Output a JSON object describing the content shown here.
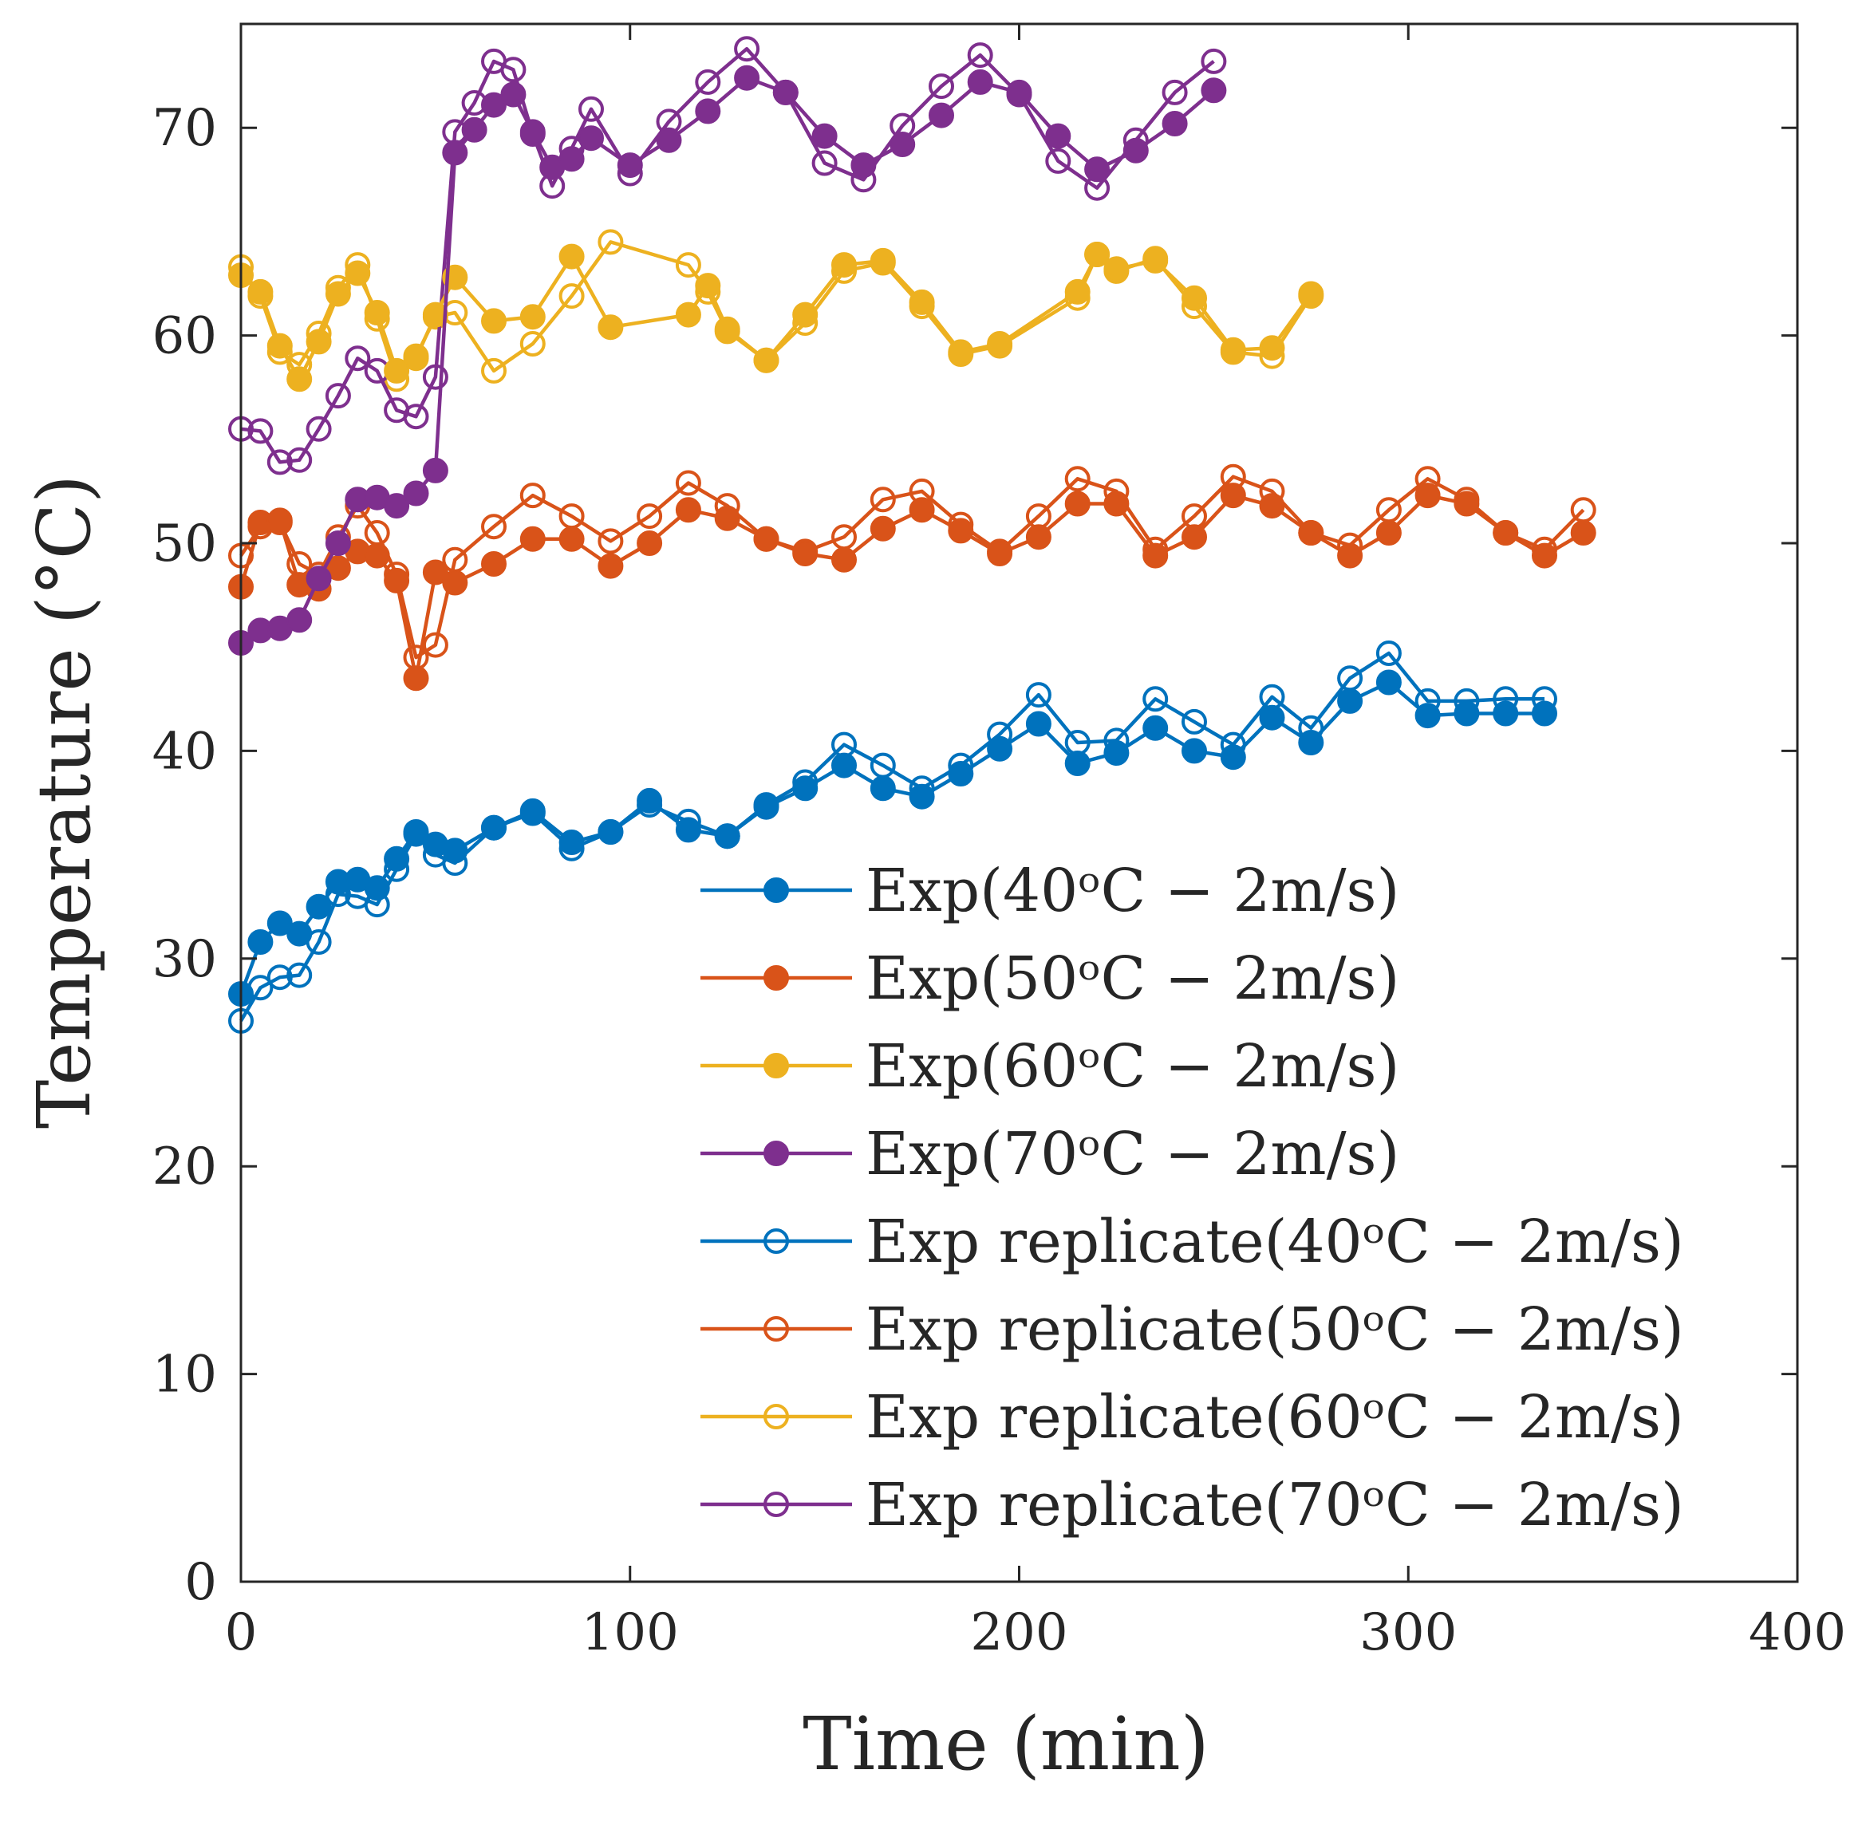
{
  "chart_data": {
    "type": "line",
    "title": "",
    "xlabel": "Time (min)",
    "ylabel": "Temperature (°C)",
    "xlim": [
      0,
      400
    ],
    "ylim": [
      0,
      75
    ],
    "xticks": [
      0,
      100,
      200,
      300,
      400
    ],
    "yticks": [
      0,
      10,
      20,
      30,
      40,
      50,
      60,
      70
    ],
    "xtick_labels": [
      "0",
      "100",
      "200",
      "300",
      "400"
    ],
    "ytick_labels": [
      "0",
      "10",
      "20",
      "30",
      "40",
      "50",
      "60",
      "70"
    ],
    "grid": false,
    "legend_position": "bottom-right",
    "series": [
      {
        "name": "Exp(40ᵒC − 2m/s)",
        "color": "#0072BD",
        "marker": "filled",
        "x": [
          0,
          5,
          10,
          15,
          20,
          25,
          30,
          35,
          40,
          45,
          50,
          55,
          65,
          75,
          85,
          95,
          105,
          115,
          125,
          135,
          145,
          155,
          165,
          175,
          185,
          195,
          205,
          215,
          225,
          235,
          245,
          255,
          265,
          275,
          285,
          295,
          305,
          315,
          325,
          335
        ],
        "y": [
          28.3,
          30.8,
          31.7,
          31.2,
          32.5,
          33.7,
          33.8,
          33.4,
          34.8,
          36.1,
          35.5,
          35.2,
          36.3,
          37.1,
          35.6,
          36.1,
          37.6,
          36.2,
          35.9,
          37.3,
          38.2,
          39.3,
          38.2,
          37.8,
          38.9,
          40.1,
          41.3,
          39.4,
          39.9,
          41.1,
          40.0,
          39.7,
          41.6,
          40.4,
          42.4,
          43.3,
          41.7,
          41.8,
          41.8,
          41.8
        ]
      },
      {
        "name": "Exp(50ᵒC − 2m/s)",
        "color": "#D95319",
        "marker": "filled",
        "x": [
          0,
          5,
          10,
          15,
          20,
          25,
          30,
          35,
          40,
          45,
          50,
          55,
          65,
          75,
          85,
          95,
          105,
          115,
          125,
          135,
          145,
          155,
          165,
          175,
          185,
          195,
          205,
          215,
          225,
          235,
          245,
          255,
          265,
          275,
          285,
          295,
          305,
          315,
          325,
          335,
          345
        ],
        "y": [
          47.9,
          51.0,
          51.1,
          48.0,
          47.8,
          48.8,
          49.6,
          49.4,
          48.2,
          43.5,
          48.6,
          48.1,
          49.0,
          50.2,
          50.2,
          48.9,
          50.0,
          51.6,
          51.2,
          50.2,
          49.5,
          49.2,
          50.7,
          51.6,
          50.6,
          49.5,
          50.3,
          51.9,
          51.9,
          49.4,
          50.3,
          52.3,
          51.8,
          50.5,
          49.4,
          50.5,
          52.3,
          51.9,
          50.5,
          49.4,
          50.5
        ]
      },
      {
        "name": "Exp(60ᵒC − 2m/s)",
        "color": "#EDB120",
        "marker": "filled",
        "x": [
          0,
          5,
          10,
          15,
          20,
          25,
          30,
          35,
          40,
          45,
          50,
          55,
          65,
          75,
          85,
          95,
          115,
          120,
          125,
          135,
          145,
          155,
          165,
          175,
          185,
          195,
          215,
          220,
          225,
          235,
          245,
          255,
          265,
          275
        ],
        "y": [
          62.9,
          62.1,
          59.5,
          57.9,
          59.7,
          62.0,
          63.0,
          61.1,
          58.3,
          58.9,
          61.0,
          62.8,
          60.7,
          60.9,
          63.8,
          60.4,
          61.0,
          62.4,
          60.3,
          58.8,
          61.0,
          63.4,
          63.6,
          61.6,
          59.2,
          59.6,
          62.1,
          63.9,
          63.2,
          63.6,
          61.8,
          59.3,
          59.4,
          62.0
        ]
      },
      {
        "name": "Exp(70ᵒC − 2m/s)",
        "color": "#7E2F8E",
        "marker": "filled",
        "x": [
          0,
          5,
          10,
          15,
          20,
          25,
          30,
          35,
          40,
          45,
          50,
          55,
          60,
          65,
          70,
          75,
          80,
          85,
          90,
          100,
          110,
          120,
          130,
          140,
          150,
          160,
          170,
          180,
          190,
          200,
          210,
          220,
          230,
          240,
          250
        ],
        "y": [
          45.2,
          45.8,
          45.9,
          46.3,
          48.3,
          50.0,
          52.1,
          52.2,
          51.8,
          52.4,
          53.5,
          68.8,
          69.9,
          71.1,
          71.6,
          69.8,
          68.1,
          68.5,
          69.5,
          68.2,
          69.4,
          70.8,
          72.4,
          71.7,
          69.6,
          68.2,
          69.2,
          70.6,
          72.2,
          71.7,
          69.6,
          68.0,
          68.9,
          70.2,
          71.8
        ]
      },
      {
        "name": "Exp replicate(40ᵒC − 2m/s)",
        "color": "#0072BD",
        "marker": "open",
        "x": [
          0,
          5,
          10,
          15,
          20,
          25,
          30,
          35,
          40,
          45,
          50,
          55,
          65,
          75,
          85,
          95,
          105,
          115,
          125,
          135,
          145,
          155,
          165,
          175,
          185,
          195,
          205,
          215,
          225,
          235,
          245,
          255,
          265,
          275,
          285,
          295,
          305,
          315,
          325,
          335
        ],
        "y": [
          27.0,
          28.6,
          29.1,
          29.2,
          30.8,
          33.1,
          33.0,
          32.6,
          34.3,
          36.0,
          35.0,
          34.6,
          36.3,
          37.0,
          35.3,
          36.1,
          37.4,
          36.6,
          35.9,
          37.4,
          38.5,
          40.3,
          39.3,
          38.2,
          39.3,
          40.8,
          42.7,
          40.4,
          40.5,
          42.5,
          41.4,
          40.3,
          42.6,
          41.1,
          43.5,
          44.7,
          42.4,
          42.4,
          42.5,
          42.5
        ]
      },
      {
        "name": "Exp replicate(50ᵒC − 2m/s)",
        "color": "#D95319",
        "marker": "open",
        "x": [
          0,
          5,
          10,
          15,
          20,
          25,
          30,
          35,
          40,
          45,
          50,
          55,
          65,
          75,
          85,
          95,
          105,
          115,
          125,
          135,
          145,
          155,
          165,
          175,
          185,
          195,
          205,
          215,
          225,
          235,
          245,
          255,
          265,
          275,
          285,
          295,
          305,
          315,
          325,
          335,
          345
        ],
        "y": [
          49.4,
          50.8,
          51.0,
          49.0,
          48.5,
          50.3,
          51.8,
          50.5,
          48.5,
          44.5,
          45.1,
          49.2,
          50.8,
          52.3,
          51.3,
          50.1,
          51.3,
          52.9,
          51.8,
          50.2,
          49.6,
          50.3,
          52.1,
          52.5,
          50.9,
          49.6,
          51.3,
          53.1,
          52.5,
          49.7,
          51.3,
          53.2,
          52.5,
          50.5,
          49.9,
          51.6,
          53.1,
          52.1,
          50.5,
          49.7,
          51.6
        ]
      },
      {
        "name": "Exp replicate(60ᵒC − 2m/s)",
        "color": "#EDB120",
        "marker": "open",
        "x": [
          0,
          5,
          10,
          15,
          20,
          25,
          30,
          35,
          40,
          45,
          50,
          55,
          65,
          75,
          85,
          95,
          115,
          120,
          125,
          135,
          145,
          155,
          165,
          175,
          185,
          195,
          215,
          220,
          225,
          235,
          245,
          255,
          265,
          275
        ],
        "y": [
          63.3,
          61.9,
          59.2,
          58.6,
          60.1,
          62.3,
          63.4,
          60.8,
          57.9,
          59.0,
          60.9,
          61.1,
          58.3,
          59.6,
          61.9,
          64.5,
          63.4,
          62.1,
          60.2,
          58.8,
          60.6,
          63.1,
          63.5,
          61.4,
          59.1,
          59.5,
          61.8,
          63.9,
          63.1,
          63.7,
          61.4,
          59.2,
          59.0,
          61.9
        ]
      },
      {
        "name": "Exp replicate(70ᵒC − 2m/s)",
        "color": "#7E2F8E",
        "marker": "open",
        "x": [
          0,
          5,
          10,
          15,
          20,
          25,
          30,
          35,
          40,
          45,
          50,
          55,
          60,
          65,
          70,
          75,
          80,
          85,
          90,
          100,
          110,
          120,
          130,
          140,
          150,
          160,
          170,
          180,
          190,
          200,
          210,
          220,
          230,
          240,
          250
        ],
        "y": [
          55.5,
          55.4,
          53.9,
          54.0,
          55.5,
          57.1,
          58.9,
          58.3,
          56.4,
          56.1,
          58.0,
          69.8,
          71.2,
          73.2,
          72.8,
          69.7,
          67.2,
          69.0,
          70.9,
          67.8,
          70.3,
          72.2,
          73.8,
          71.7,
          68.3,
          67.5,
          70.1,
          72.0,
          73.5,
          71.6,
          68.4,
          67.1,
          69.4,
          71.7,
          73.2
        ]
      }
    ]
  }
}
